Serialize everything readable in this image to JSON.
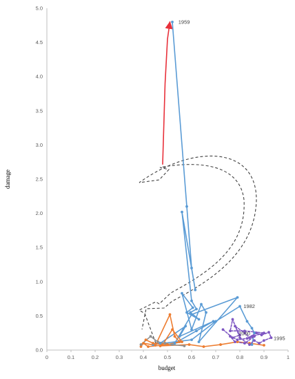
{
  "chart_data": {
    "type": "scatter",
    "xlabel": "budget",
    "ylabel": "damage",
    "xlim": [
      0,
      1
    ],
    "ylim": [
      0,
      5
    ],
    "x_ticks": [
      0,
      0.1,
      0.2,
      0.3,
      0.4,
      0.5,
      0.6,
      0.7,
      0.8,
      0.9,
      1
    ],
    "y_ticks": [
      0,
      0.5,
      1,
      1.5,
      2,
      2.5,
      3,
      3.5,
      4,
      4.5,
      5
    ],
    "x_tick_labels": [
      "0",
      "0.1",
      "0.2",
      "0.3",
      "0.4",
      "0.5",
      "0.6",
      "0.7",
      "0.8",
      "0.9",
      "1"
    ],
    "y_tick_labels": [
      "0.0",
      "0.5",
      "1.0",
      "1.5",
      "2.0",
      "2.5",
      "3.0",
      "3.5",
      "4.0",
      "4.5",
      "5.0"
    ],
    "grid": false,
    "series": [
      {
        "color": "#e8303a",
        "style": "solid",
        "points": [
          [
            0.48,
            2.72
          ],
          [
            0.49,
            3.9
          ],
          [
            0.5,
            4.55
          ],
          [
            0.51,
            4.8
          ]
        ]
      },
      {
        "color": "#5a9bd5",
        "style": "solid",
        "points": [
          [
            0.52,
            4.8
          ],
          [
            0.58,
            2.1
          ],
          [
            0.6,
            1.2
          ],
          [
            0.615,
            0.88
          ],
          [
            0.56,
            2.02
          ],
          [
            0.6,
            0.72
          ],
          [
            0.62,
            0.6
          ],
          [
            0.595,
            0.55
          ],
          [
            0.63,
            0.45
          ],
          [
            0.58,
            0.55
          ],
          [
            0.605,
            0.62
          ],
          [
            0.56,
            0.83
          ],
          [
            0.6,
            0.3
          ],
          [
            0.64,
            0.67
          ],
          [
            0.66,
            0.55
          ],
          [
            0.63,
            0.12
          ],
          [
            0.79,
            0.77
          ],
          [
            0.6,
            0.52
          ],
          [
            0.53,
            0.1
          ],
          [
            0.62,
            0.28
          ],
          [
            0.69,
            0.42
          ],
          [
            0.55,
            0.2
          ],
          [
            0.575,
            0.35
          ],
          [
            0.47,
            0.1
          ],
          [
            0.44,
            0.08
          ],
          [
            0.6,
            0.15
          ],
          [
            0.7,
            0.42
          ],
          [
            0.8,
            0.64
          ],
          [
            0.83,
            0.42
          ],
          [
            0.85,
            0.32
          ],
          [
            0.86,
            0.25
          ],
          [
            0.85,
            0.08
          ]
        ]
      },
      {
        "color": "#ed7d31",
        "style": "solid",
        "points": [
          [
            0.39,
            0.05
          ],
          [
            0.41,
            0.15
          ],
          [
            0.44,
            0.1
          ],
          [
            0.48,
            0.08
          ],
          [
            0.52,
            0.3
          ],
          [
            0.56,
            0.12
          ],
          [
            0.5,
            0.08
          ],
          [
            0.42,
            0.05
          ],
          [
            0.4,
            0.1
          ],
          [
            0.45,
            0.07
          ],
          [
            0.51,
            0.52
          ],
          [
            0.53,
            0.2
          ],
          [
            0.55,
            0.12
          ],
          [
            0.47,
            0.06
          ],
          [
            0.59,
            0.08
          ],
          [
            0.65,
            0.05
          ],
          [
            0.72,
            0.08
          ],
          [
            0.79,
            0.12
          ],
          [
            0.84,
            0.1
          ],
          [
            0.9,
            0.07
          ]
        ]
      },
      {
        "color": "#909090",
        "style": "solid",
        "points": [
          [
            0.39,
            0.08
          ],
          [
            0.43,
            0.2
          ],
          [
            0.46,
            0.12
          ],
          [
            0.49,
            0.1
          ],
          [
            0.52,
            0.08
          ],
          [
            0.57,
            0.06
          ]
        ]
      },
      {
        "color": "#7e57c2",
        "style": "dashed",
        "points": [
          [
            0.73,
            0.3
          ],
          [
            0.77,
            0.18
          ],
          [
            0.8,
            0.22
          ],
          [
            0.78,
            0.35
          ],
          [
            0.82,
            0.25
          ],
          [
            0.84,
            0.18
          ],
          [
            0.86,
            0.2
          ],
          [
            0.82,
            0.1
          ],
          [
            0.78,
            0.12
          ],
          [
            0.76,
            0.2
          ],
          [
            0.79,
            0.15
          ],
          [
            0.83,
            0.17
          ],
          [
            0.87,
            0.25
          ],
          [
            0.89,
            0.22
          ],
          [
            0.92,
            0.26
          ],
          [
            0.93,
            0.18
          ],
          [
            0.9,
            0.14
          ],
          [
            0.88,
            0.1
          ],
          [
            0.86,
            0.14
          ],
          [
            0.84,
            0.08
          ],
          [
            0.8,
            0.18
          ],
          [
            0.77,
            0.45
          ],
          [
            0.76,
            0.28
          ],
          [
            0.82,
            0.28
          ],
          [
            0.9,
            0.25
          ],
          [
            0.85,
            0.2
          ]
        ]
      }
    ],
    "annotations": [
      {
        "text": "1959",
        "x": 0.545,
        "y": 4.8
      },
      {
        "text": "1982",
        "x": 0.815,
        "y": 0.64
      },
      {
        "text": "2000",
        "x": 0.795,
        "y": 0.24
      },
      {
        "text": "1995",
        "x": 0.94,
        "y": 0.17
      }
    ]
  }
}
